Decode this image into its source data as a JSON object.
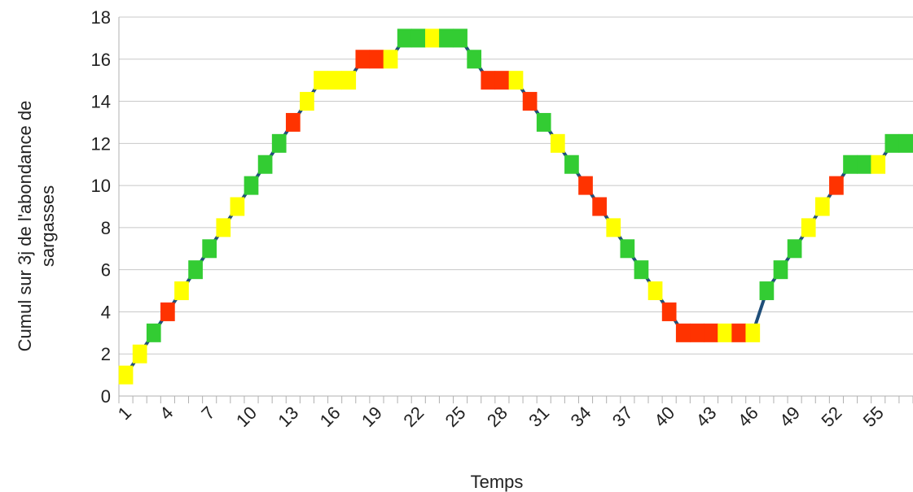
{
  "chart_data": {
    "type": "line",
    "xlabel": "Temps",
    "ylabel_line1": "Cumul sur 3j de l'abondance de",
    "ylabel_line2": "sargasses",
    "ylim": [
      0,
      18
    ],
    "yticks": [
      0,
      2,
      4,
      6,
      8,
      10,
      12,
      14,
      16,
      18
    ],
    "x_tick_labels": [
      1,
      4,
      7,
      10,
      13,
      16,
      19,
      22,
      25,
      28,
      31,
      34,
      37,
      40,
      43,
      46,
      49,
      52,
      55
    ],
    "grid": "horizontal",
    "line_color": "#1f4e79",
    "colors": {
      "green": "#33cc33",
      "yellow": "#ffff00",
      "red": "#ff3300"
    },
    "x": [
      1,
      2,
      3,
      4,
      5,
      6,
      7,
      8,
      9,
      10,
      11,
      12,
      13,
      14,
      15,
      16,
      17,
      18,
      19,
      20,
      21,
      22,
      23,
      24,
      25,
      26,
      27,
      28,
      29,
      30,
      31,
      32,
      33,
      34,
      35,
      36,
      37,
      38,
      39,
      40,
      41,
      42,
      43,
      44,
      45,
      46,
      47,
      48,
      49,
      50,
      51,
      52,
      53,
      54,
      55,
      56,
      57
    ],
    "values": [
      1,
      2,
      3,
      4,
      5,
      6,
      7,
      8,
      9,
      10,
      11,
      12,
      13,
      14,
      15,
      15,
      15,
      16,
      16,
      16,
      17,
      17,
      17,
      17,
      17,
      16,
      15,
      15,
      15,
      14,
      13,
      12,
      11,
      10,
      9,
      8,
      7,
      6,
      5,
      4,
      3,
      3,
      3,
      3,
      3,
      3,
      5,
      6,
      7,
      8,
      9,
      10,
      11,
      11,
      11,
      12,
      12
    ],
    "point_colors": [
      "yellow",
      "yellow",
      "green",
      "red",
      "yellow",
      "green",
      "green",
      "yellow",
      "yellow",
      "green",
      "green",
      "green",
      "red",
      "yellow",
      "yellow",
      "yellow",
      "yellow",
      "red",
      "red",
      "yellow",
      "green",
      "green",
      "yellow",
      "green",
      "green",
      "green",
      "red",
      "red",
      "yellow",
      "red",
      "green",
      "yellow",
      "green",
      "red",
      "red",
      "yellow",
      "green",
      "green",
      "yellow",
      "red",
      "red",
      "red",
      "red",
      "yellow",
      "red",
      "yellow",
      "green",
      "green",
      "green",
      "yellow",
      "yellow",
      "red",
      "green",
      "green",
      "yellow",
      "green",
      "green"
    ]
  }
}
